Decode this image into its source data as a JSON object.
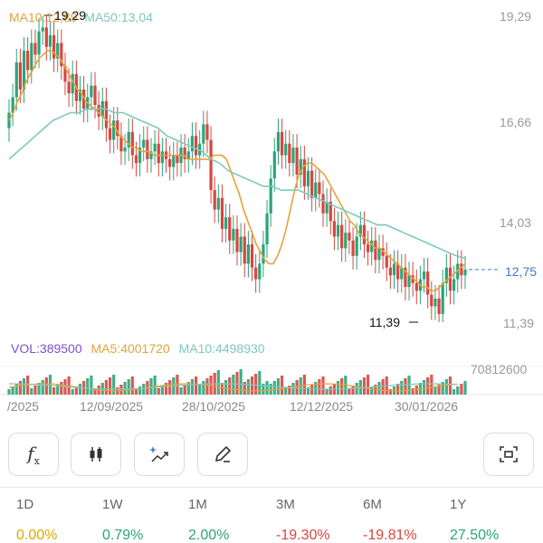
{
  "colors": {
    "up": "#2aa57a",
    "down": "#d9453f",
    "ma10": "#e6a23a",
    "ma50": "#7ec8bd",
    "vol": "#7d4fd0",
    "vol_ma5": "#e6a23a",
    "vol_ma10": "#7ec8bd",
    "last_price": "#3a7bd5",
    "neutral": "#e0a800"
  },
  "legend": {
    "ma10_label": "MA10:12,89",
    "ma50_label": "MA50:13,04",
    "vol_label": "VOL:389500",
    "vol_ma5_label": "MA5:4001720",
    "vol_ma10_label": "MA10:4498930"
  },
  "price_axis": [
    "19,29",
    "16,66",
    "14,03",
    "11,39"
  ],
  "volume_axis_max": "70812600",
  "last_price": "12,75",
  "annotations": {
    "high_label": "19,29",
    "low_label": "11,39"
  },
  "x_axis_labels": [
    "/2025",
    "12/09/2025",
    "28/10/2025",
    "12/12/2025",
    "30/01/2026"
  ],
  "toolbar": [
    {
      "name": "indicators-button",
      "icon": "function-icon"
    },
    {
      "name": "candlestick-button",
      "icon": "candlestick-icon"
    },
    {
      "name": "ai-analysis-button",
      "icon": "sparkle-chart-icon"
    },
    {
      "name": "draw-button",
      "icon": "pencil-icon"
    },
    {
      "name": "screenshot-button",
      "icon": "scan-icon"
    }
  ],
  "periods": [
    {
      "label": "1D",
      "value": "0.00%",
      "trend": "neutral"
    },
    {
      "label": "1W",
      "value": "0.79%",
      "trend": "up"
    },
    {
      "label": "1M",
      "value": "2.00%",
      "trend": "up"
    },
    {
      "label": "3M",
      "value": "-19.30%",
      "trend": "down"
    },
    {
      "label": "6M",
      "value": "-19.81%",
      "trend": "down"
    },
    {
      "label": "1Y",
      "value": "27.50%",
      "trend": "up"
    }
  ],
  "chart_data": {
    "type": "candlestick",
    "y_range": [
      11.39,
      19.29
    ],
    "closes": [
      16.8,
      17.2,
      18.1,
      17.4,
      18.4,
      17.9,
      18.6,
      18.3,
      18.9,
      19.0,
      18.5,
      18.8,
      18.2,
      18.6,
      18.0,
      17.6,
      17.3,
      17.8,
      17.1,
      17.4,
      16.9,
      17.2,
      17.5,
      17.0,
      16.7,
      17.1,
      16.4,
      16.1,
      16.6,
      16.2,
      15.8,
      15.9,
      16.3,
      15.7,
      15.5,
      15.9,
      16.1,
      15.6,
      15.8,
      16.0,
      15.5,
      15.8,
      15.6,
      15.4,
      15.7,
      15.5,
      15.9,
      15.6,
      15.8,
      16.2,
      15.7,
      16.0,
      16.5,
      16.1,
      14.8,
      14.3,
      14.6,
      13.8,
      14.1,
      13.5,
      13.8,
      13.2,
      13.6,
      12.9,
      13.4,
      12.8,
      12.5,
      12.9,
      13.4,
      14.2,
      15.1,
      15.8,
      16.3,
      15.7,
      16.0,
      15.5,
      15.9,
      15.2,
      15.6,
      14.9,
      15.3,
      14.6,
      15.0,
      14.7,
      14.2,
      14.5,
      14.0,
      13.6,
      13.9,
      13.3,
      13.7,
      13.5,
      13.1,
      13.6,
      13.9,
      13.4,
      13.2,
      13.5,
      13.0,
      13.3,
      13.1,
      12.8,
      12.6,
      12.9,
      12.5,
      12.8,
      12.3,
      12.6,
      12.4,
      12.2,
      12.5,
      12.7,
      12.1,
      11.8,
      12.0,
      11.6,
      12.4,
      12.8,
      12.2,
      12.5,
      12.9,
      12.6,
      12.75
    ],
    "opens": [
      16.4,
      16.8,
      17.2,
      18.1,
      17.4,
      18.4,
      17.9,
      18.6,
      18.3,
      18.9,
      19.0,
      18.5,
      18.8,
      18.2,
      18.6,
      18.0,
      17.6,
      17.3,
      17.8,
      17.1,
      17.4,
      16.9,
      17.2,
      17.5,
      17.0,
      16.7,
      17.1,
      16.4,
      16.1,
      16.6,
      16.2,
      15.8,
      15.9,
      16.3,
      15.7,
      15.5,
      15.9,
      16.1,
      15.6,
      15.8,
      16.0,
      15.5,
      15.8,
      15.6,
      15.4,
      15.7,
      15.5,
      15.9,
      15.6,
      15.8,
      16.2,
      15.7,
      16.0,
      16.5,
      16.1,
      14.8,
      14.3,
      14.6,
      13.8,
      14.1,
      13.5,
      13.8,
      13.2,
      13.6,
      12.9,
      13.4,
      12.8,
      12.5,
      12.9,
      13.4,
      14.2,
      15.1,
      15.8,
      16.3,
      15.7,
      16.0,
      15.5,
      15.9,
      15.2,
      15.6,
      14.9,
      15.3,
      14.6,
      15.0,
      14.7,
      14.2,
      14.5,
      14.0,
      13.6,
      13.9,
      13.3,
      13.7,
      13.5,
      13.1,
      13.6,
      13.9,
      13.4,
      13.2,
      13.5,
      13.0,
      13.3,
      13.1,
      12.8,
      12.6,
      12.9,
      12.5,
      12.8,
      12.3,
      12.6,
      12.4,
      12.2,
      12.5,
      12.7,
      12.1,
      11.8,
      12.0,
      11.6,
      12.4,
      12.8,
      12.2,
      12.5,
      12.9,
      12.6
    ],
    "ma10": [
      16.6,
      16.8,
      17.1,
      17.3,
      17.6,
      17.8,
      18.0,
      18.2,
      18.3,
      18.4,
      18.4,
      18.3,
      18.2,
      18.0,
      17.8,
      17.6,
      17.4,
      17.3,
      17.1,
      17.0,
      16.9,
      16.8,
      16.7,
      16.6,
      16.5,
      16.4,
      16.2,
      16.1,
      16.0,
      15.9,
      15.9,
      15.8,
      15.8,
      15.8,
      15.7,
      15.7,
      15.7,
      15.7,
      15.7,
      15.7,
      15.7,
      15.7,
      15.6,
      15.6,
      15.6,
      15.6,
      15.6,
      15.6,
      15.7,
      15.7,
      15.7,
      15.6,
      15.3,
      15.0,
      14.7,
      14.3,
      14.0,
      13.7,
      13.4,
      13.2,
      13.0,
      12.9,
      12.9,
      13.1,
      13.4,
      13.8,
      14.3,
      14.8,
      15.2,
      15.4,
      15.5,
      15.5,
      15.4,
      15.3,
      15.2,
      15.0,
      14.8,
      14.6,
      14.4,
      14.2,
      14.0,
      13.9,
      13.7,
      13.6,
      13.5,
      13.4,
      13.3,
      13.3,
      13.2,
      13.1,
      13.0,
      12.9,
      12.8,
      12.7,
      12.6,
      12.5,
      12.4,
      12.3,
      12.3,
      12.2,
      12.2,
      12.3,
      12.4,
      12.5,
      12.6,
      12.7,
      12.8,
      12.89
    ],
    "ma50": [
      15.6,
      15.8,
      16.0,
      16.2,
      16.4,
      16.6,
      16.7,
      16.8,
      16.8,
      16.9,
      16.9,
      16.9,
      16.8,
      16.8,
      16.7,
      16.6,
      16.5,
      16.4,
      16.2,
      16.1,
      16.0,
      15.9,
      15.8,
      15.6,
      15.5,
      15.3,
      15.2,
      15.1,
      15.0,
      14.9,
      14.9,
      14.8,
      14.8,
      14.8,
      14.7,
      14.6,
      14.5,
      14.4,
      14.3,
      14.2,
      14.1,
      14.0,
      13.9,
      13.9,
      13.8,
      13.7,
      13.6,
      13.5,
      13.4,
      13.3,
      13.2,
      13.1,
      13.04
    ],
    "volume_label": "VOL:389500"
  }
}
